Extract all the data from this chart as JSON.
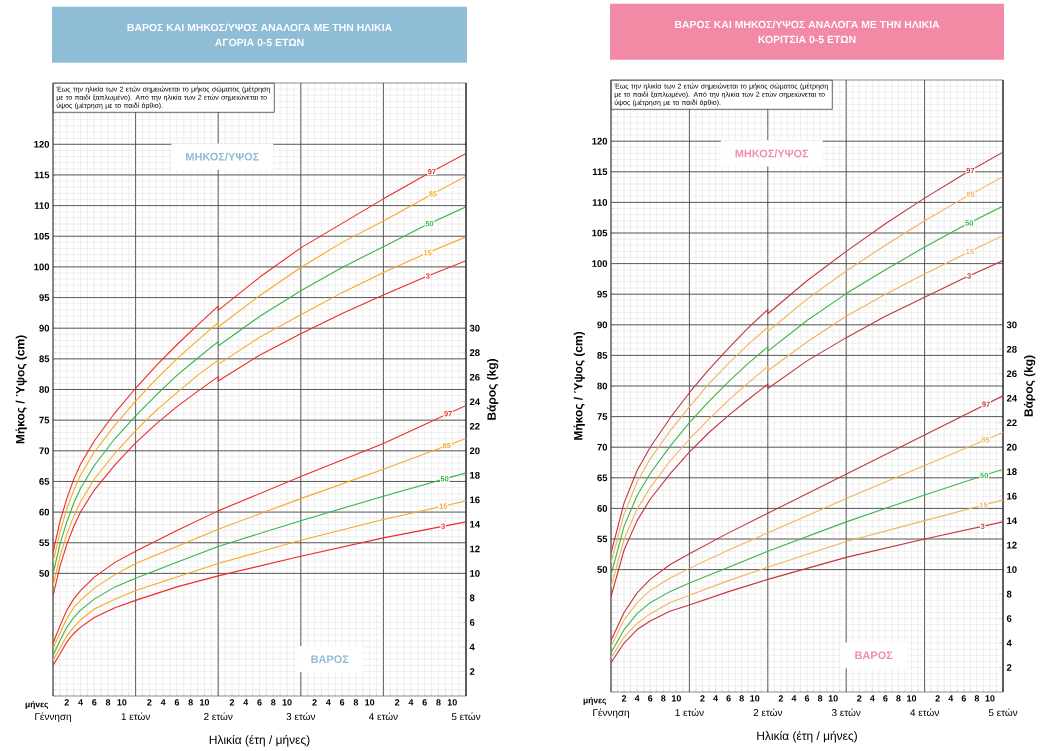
{
  "chart_data": [
    {
      "type": "line",
      "title": "ΒΑΡΟΣ ΚΑΙ ΜΗΚΟΣ/ΥΨΟΣ ΑΝΑΛΟΓΑ ΜΕ ΤΗΝ ΗΛΙΚΙΑ",
      "subtitle": "ΑΓΟΡΙΑ 0-5 ΕΤΩΝ",
      "xlabel": "Ηλικία (έτη / μήνες)",
      "ylabel": "Μήκος / Ύψος (cm)",
      "y2label": "Βάρος (kg)",
      "annotations": [
        "Έως την ηλικία των 2 ετών σημειώνεται το μήκος σώματος (μέτρηση με το παιδί ξαπλωμένο). Από την ηλικία των 2 ετών σημειώνεται το ύψος (μέτρηση με το παιδί όρθιο).",
        "ΜΗΚΟΣ/ΥΨΟΣ",
        "ΒΑΡΟΣ",
        "μήνες",
        "2",
        "4",
        "6",
        "8",
        "10",
        "2",
        "4",
        "6",
        "8",
        "10",
        "2",
        "4",
        "6",
        "8",
        "10",
        "2",
        "4",
        "6",
        "8",
        "10",
        "2",
        "4",
        "6",
        "8",
        "10"
      ],
      "xlim": [
        0,
        5
      ],
      "ylim": [
        30,
        130
      ],
      "y2lim": [
        0,
        50
      ],
      "xticks": [
        {
          "value": 0,
          "label": "Γέννηση"
        },
        {
          "value": 1,
          "label": "1 ετών"
        },
        {
          "value": 2,
          "label": "2 ετών"
        },
        {
          "value": 3,
          "label": "3 ετών"
        },
        {
          "value": 4,
          "label": "4 ετών"
        },
        {
          "value": 5,
          "label": "5 ετών"
        }
      ],
      "yticks": [
        50,
        55,
        60,
        65,
        70,
        75,
        80,
        85,
        90,
        95,
        100,
        105,
        110,
        115,
        120
      ],
      "y2ticks": [
        2,
        4,
        6,
        8,
        10,
        12,
        14,
        16,
        18,
        20,
        22,
        24,
        26,
        28,
        30
      ],
      "grid": true,
      "series": [
        {
          "name": "97",
          "color": "#ee2a24",
          "x": [
            0,
            0.083,
            0.167,
            0.25,
            0.333,
            0.5,
            0.75,
            1,
            1.25,
            1.5,
            1.75,
            2,
            2,
            2.5,
            3,
            3.5,
            4,
            4.5,
            5
          ],
          "values": [
            53.4,
            58.4,
            62.2,
            65.3,
            67.8,
            71.6,
            76.2,
            80.2,
            83.9,
            87.3,
            90.5,
            93.6,
            92.9,
            98.3,
            103.1,
            107.1,
            111.1,
            114.9,
            118.5
          ]
        },
        {
          "name": "85",
          "color": "#f7a823",
          "x": [
            0,
            0.083,
            0.167,
            0.25,
            0.333,
            0.5,
            0.75,
            1,
            1.25,
            1.5,
            1.75,
            2,
            2,
            2.5,
            3,
            3.5,
            4,
            4.5,
            5
          ],
          "values": [
            51.8,
            56.7,
            60.5,
            63.5,
            66.0,
            69.8,
            74.2,
            78.1,
            81.7,
            85.0,
            88.0,
            90.9,
            90.2,
            95.3,
            99.9,
            104.0,
            107.5,
            111.2,
            114.8
          ]
        },
        {
          "name": "50",
          "color": "#36b44a",
          "x": [
            0,
            0.083,
            0.167,
            0.25,
            0.333,
            0.5,
            0.75,
            1,
            1.25,
            1.5,
            1.75,
            2,
            2,
            2.5,
            3,
            3.5,
            4,
            4.5,
            5
          ],
          "values": [
            49.9,
            54.7,
            58.4,
            61.4,
            63.9,
            67.6,
            72.0,
            75.7,
            79.1,
            82.3,
            85.1,
            87.8,
            87.1,
            91.9,
            96.1,
            99.9,
            103.3,
            106.7,
            109.8
          ]
        },
        {
          "name": "15",
          "color": "#f7a823",
          "x": [
            0,
            0.083,
            0.167,
            0.25,
            0.333,
            0.5,
            0.75,
            1,
            1.25,
            1.5,
            1.75,
            2,
            2,
            2.5,
            3,
            3.5,
            4,
            4.5,
            5
          ],
          "values": [
            47.9,
            52.7,
            56.4,
            59.3,
            61.7,
            65.4,
            69.6,
            73.3,
            76.6,
            79.5,
            82.3,
            84.8,
            84.1,
            88.5,
            92.2,
            95.8,
            99.1,
            102.1,
            104.9
          ]
        },
        {
          "name": "3",
          "color": "#ee2a24",
          "x": [
            0,
            0.083,
            0.167,
            0.25,
            0.333,
            0.5,
            0.75,
            1,
            1.25,
            1.5,
            1.75,
            2,
            2,
            2.5,
            3,
            3.5,
            4,
            4.5,
            5
          ],
          "values": [
            46.3,
            51.1,
            54.7,
            57.6,
            60.0,
            63.6,
            67.7,
            71.3,
            74.4,
            77.2,
            79.7,
            82.1,
            81.4,
            85.6,
            89.1,
            92.4,
            95.4,
            98.3,
            101.0
          ]
        },
        {
          "name": "97",
          "color": "#ee2a24",
          "axis": "y2",
          "x": [
            0,
            0.083,
            0.167,
            0.25,
            0.333,
            0.5,
            0.75,
            1,
            1.5,
            2,
            3,
            4,
            5
          ],
          "values": [
            4.3,
            5.7,
            7.0,
            7.9,
            8.6,
            9.7,
            10.9,
            11.8,
            13.5,
            15.1,
            17.9,
            20.6,
            23.7
          ]
        },
        {
          "name": "85",
          "color": "#f7a823",
          "axis": "y2",
          "x": [
            0,
            0.083,
            0.167,
            0.25,
            0.333,
            0.5,
            0.75,
            1,
            1.5,
            2,
            3,
            4,
            5
          ],
          "values": [
            3.9,
            5.1,
            6.3,
            7.2,
            7.8,
            8.8,
            9.9,
            10.8,
            12.2,
            13.6,
            16.1,
            18.5,
            21.0
          ]
        },
        {
          "name": "50",
          "color": "#36b44a",
          "axis": "y2",
          "x": [
            0,
            0.083,
            0.167,
            0.25,
            0.333,
            0.5,
            0.75,
            1,
            1.5,
            2,
            3,
            4,
            5
          ],
          "values": [
            3.3,
            4.5,
            5.6,
            6.4,
            7.0,
            7.9,
            8.9,
            9.6,
            10.9,
            12.2,
            14.3,
            16.3,
            18.2
          ]
        },
        {
          "name": "15",
          "color": "#f7a823",
          "axis": "y2",
          "x": [
            0,
            0.083,
            0.167,
            0.25,
            0.333,
            0.5,
            0.75,
            1,
            1.5,
            2,
            3,
            4,
            5
          ],
          "values": [
            2.9,
            3.9,
            4.9,
            5.6,
            6.2,
            7.1,
            7.9,
            8.6,
            9.7,
            10.8,
            12.7,
            14.4,
            15.9
          ]
        },
        {
          "name": "3",
          "color": "#ee2a24",
          "axis": "y2",
          "x": [
            0,
            0.083,
            0.167,
            0.25,
            0.333,
            0.5,
            0.75,
            1,
            1.5,
            2,
            3,
            4,
            5
          ],
          "values": [
            2.5,
            3.4,
            4.4,
            5.1,
            5.6,
            6.4,
            7.2,
            7.8,
            8.9,
            9.8,
            11.4,
            12.9,
            14.2
          ]
        }
      ]
    },
    {
      "type": "line",
      "title": "ΒΑΡΟΣ ΚΑΙ ΜΗΚΟΣ/ΥΨΟΣ ΑΝΑΛΟΓΑ ΜΕ ΤΗΝ ΗΛΙΚΙΑ",
      "subtitle": "ΚΟΡΙΤΣΙΑ 0-5 ΕΤΩΝ",
      "xlabel": "Ηλικία (έτη / μήνες)",
      "ylabel": "Μήκος / Ύψος (cm)",
      "y2label": "Βάρος (kg)",
      "annotations": [
        "Έως την ηλικία των 2 ετών σημειώνεται το μήκος σώματος (μέτρηση με το παιδί ξαπλωμένο). Από την ηλικία των 2 ετών σημειώνεται το ύψος (μέτρηση με το παιδί όρθιο).",
        "ΜΗΚΟΣ/ΥΨΟΣ",
        "ΒΑΡΟΣ",
        "μήνες",
        "2",
        "4",
        "6",
        "8",
        "10",
        "2",
        "4",
        "6",
        "8",
        "10",
        "2",
        "4",
        "6",
        "8",
        "10",
        "2",
        "4",
        "6",
        "8",
        "10",
        "2",
        "4",
        "6",
        "8",
        "10"
      ],
      "xlim": [
        0,
        5
      ],
      "ylim": [
        30,
        130
      ],
      "y2lim": [
        0,
        50
      ],
      "xticks": [
        {
          "value": 0,
          "label": "Γέννηση"
        },
        {
          "value": 1,
          "label": "1 ετών"
        },
        {
          "value": 2,
          "label": "2 ετών"
        },
        {
          "value": 3,
          "label": "3 ετών"
        },
        {
          "value": 4,
          "label": "4 ετών"
        },
        {
          "value": 5,
          "label": "5 ετών"
        }
      ],
      "yticks": [
        50,
        55,
        60,
        65,
        70,
        75,
        80,
        85,
        90,
        95,
        100,
        105,
        110,
        115,
        120
      ],
      "y2ticks": [
        2,
        4,
        6,
        8,
        10,
        12,
        14,
        16,
        18,
        20,
        22,
        24,
        26,
        28,
        30
      ],
      "grid": true,
      "series": [
        {
          "name": "97",
          "color": "#c4343f",
          "x": [
            0,
            0.167,
            0.333,
            0.5,
            0.75,
            1,
            1.25,
            1.5,
            1.75,
            2,
            2,
            2.5,
            3,
            3.5,
            4,
            4.5,
            5
          ],
          "values": [
            52.7,
            60.9,
            66.2,
            70.0,
            74.7,
            78.9,
            82.7,
            86.2,
            89.5,
            92.5,
            91.8,
            97.2,
            102.0,
            106.5,
            110.7,
            114.6,
            118.2
          ]
        },
        {
          "name": "85",
          "color": "#f3b35a",
          "x": [
            0,
            0.167,
            0.333,
            0.5,
            0.75,
            1,
            1.25,
            1.5,
            1.75,
            2,
            2,
            2.5,
            3,
            3.5,
            4,
            4.5,
            5
          ],
          "values": [
            51.1,
            59.1,
            64.3,
            68.1,
            72.6,
            76.6,
            80.4,
            83.7,
            86.8,
            89.6,
            88.9,
            94.2,
            98.8,
            103.0,
            107.0,
            110.7,
            114.2
          ]
        },
        {
          "name": "50",
          "color": "#3db54a",
          "x": [
            0,
            0.167,
            0.333,
            0.5,
            0.75,
            1,
            1.25,
            1.5,
            1.75,
            2,
            2,
            2.5,
            3,
            3.5,
            4,
            4.5,
            5
          ],
          "values": [
            49.1,
            57.1,
            62.1,
            65.7,
            70.1,
            74.0,
            77.5,
            80.7,
            83.7,
            86.4,
            85.7,
            90.7,
            95.1,
            99.0,
            102.7,
            106.2,
            109.4
          ]
        },
        {
          "name": "15",
          "color": "#f3b35a",
          "x": [
            0,
            0.167,
            0.333,
            0.5,
            0.75,
            1,
            1.25,
            1.5,
            1.75,
            2,
            2,
            2.5,
            3,
            3.5,
            4,
            4.5,
            5
          ],
          "values": [
            47.2,
            55.0,
            59.9,
            63.4,
            67.7,
            71.3,
            74.6,
            77.7,
            80.5,
            83.2,
            82.5,
            87.2,
            91.4,
            95.0,
            98.3,
            101.5,
            104.6
          ]
        },
        {
          "name": "3",
          "color": "#c4343f",
          "x": [
            0,
            0.167,
            0.333,
            0.5,
            0.75,
            1,
            1.25,
            1.5,
            1.75,
            2,
            2,
            2.5,
            3,
            3.5,
            4,
            4.5,
            5
          ],
          "values": [
            45.6,
            53.2,
            58.0,
            61.5,
            65.6,
            69.2,
            72.4,
            75.2,
            77.8,
            80.3,
            79.6,
            84.1,
            87.9,
            91.4,
            94.5,
            97.6,
            100.5
          ]
        },
        {
          "name": "97",
          "color": "#c4343f",
          "axis": "y2",
          "x": [
            0,
            0.167,
            0.333,
            0.5,
            0.75,
            1,
            1.5,
            2,
            3,
            4,
            5
          ],
          "values": [
            4.2,
            6.5,
            8.1,
            9.2,
            10.4,
            11.3,
            13.0,
            14.6,
            17.8,
            21.0,
            24.2
          ]
        },
        {
          "name": "85",
          "color": "#f3b35a",
          "axis": "y2",
          "x": [
            0,
            0.167,
            0.333,
            0.5,
            0.75,
            1,
            1.5,
            2,
            3,
            4,
            5
          ],
          "values": [
            3.7,
            5.9,
            7.3,
            8.3,
            9.3,
            10.1,
            11.6,
            13.0,
            15.8,
            18.5,
            21.2
          ]
        },
        {
          "name": "50",
          "color": "#3db54a",
          "axis": "y2",
          "x": [
            0,
            0.167,
            0.333,
            0.5,
            0.75,
            1,
            1.5,
            2,
            3,
            4,
            5
          ],
          "values": [
            3.2,
            5.1,
            6.4,
            7.3,
            8.2,
            8.9,
            10.2,
            11.5,
            13.9,
            16.1,
            18.2
          ]
        },
        {
          "name": "15",
          "color": "#f3b35a",
          "axis": "y2",
          "x": [
            0,
            0.167,
            0.333,
            0.5,
            0.75,
            1,
            1.5,
            2,
            3,
            4,
            5
          ],
          "values": [
            2.8,
            4.5,
            5.6,
            6.4,
            7.3,
            7.9,
            9.1,
            10.2,
            12.3,
            14.0,
            15.7
          ]
        },
        {
          "name": "3",
          "color": "#c4343f",
          "axis": "y2",
          "x": [
            0,
            0.167,
            0.333,
            0.5,
            0.75,
            1,
            1.5,
            2,
            3,
            4,
            5
          ],
          "values": [
            2.4,
            4.0,
            5.1,
            5.8,
            6.6,
            7.1,
            8.2,
            9.2,
            11.0,
            12.5,
            13.9
          ]
        }
      ]
    }
  ]
}
